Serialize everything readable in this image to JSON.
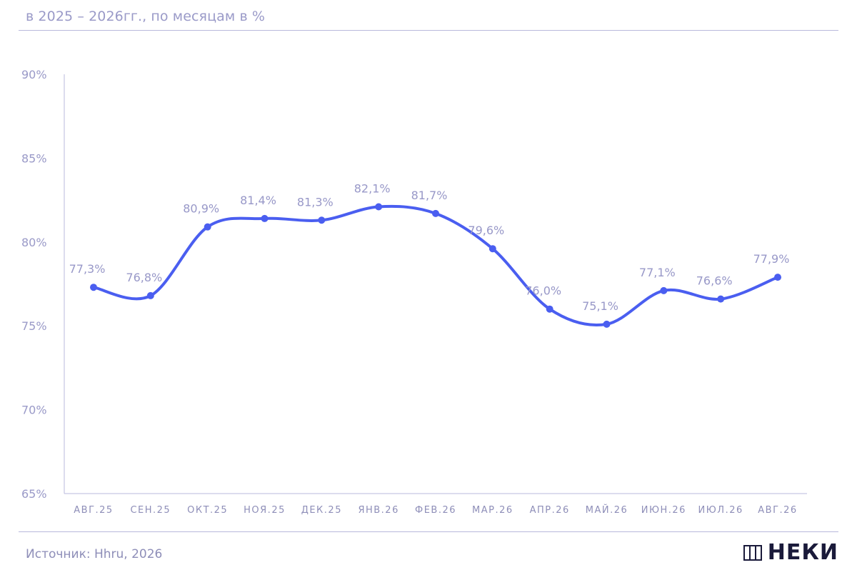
{
  "subtitle": "в 2025 – 2026гг., по месяцам в %",
  "footer": {
    "source": "Источник: Hhru, 2026",
    "logo": "НЕКИ"
  },
  "colors": {
    "line": "#4a5ef0",
    "axis": "#b8b8dc",
    "text": "#9a9ac8"
  },
  "chart_data": {
    "type": "line",
    "title": "",
    "xlabel": "",
    "ylabel": "",
    "ylim": [
      65,
      90
    ],
    "yticks": [
      "65%",
      "70%",
      "75%",
      "80%",
      "85%",
      "90%"
    ],
    "categories": [
      "АВГ.25",
      "СЕН.25",
      "ОКТ.25",
      "НОЯ.25",
      "ДЕК.25",
      "ЯНВ.26",
      "ФЕВ.26",
      "МАР.26",
      "АПР.26",
      "МАЙ.26",
      "ИЮН.26",
      "ИЮЛ.26",
      "АВГ.26"
    ],
    "values": [
      77.3,
      76.8,
      80.9,
      81.4,
      81.3,
      82.1,
      81.7,
      79.6,
      76.0,
      75.1,
      77.1,
      76.6,
      77.9
    ],
    "labels": [
      "77,3%",
      "76,8%",
      "80,9%",
      "81,4%",
      "81,3%",
      "82,1%",
      "81,7%",
      "79,6%",
      "76,0%",
      "75,1%",
      "77,1%",
      "76,6%",
      "77,9%"
    ],
    "grid": false,
    "legend": "none"
  }
}
